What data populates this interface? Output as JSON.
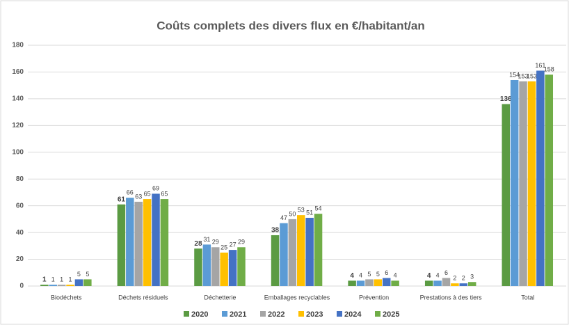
{
  "chart_data": {
    "type": "bar",
    "title": "Coûts complets des divers flux en €/habitant/an",
    "categories": [
      "Biodéchets",
      "Déchets résiduels",
      "Déchetterie",
      "Emballages recyclables",
      "Prévention",
      "Prestations à des tiers",
      "Total"
    ],
    "series": [
      {
        "name": "2020",
        "color": "#5b9b43",
        "values": [
          1,
          61,
          28,
          38,
          4,
          4,
          136
        ]
      },
      {
        "name": "2021",
        "color": "#5b9bd5",
        "values": [
          1,
          66,
          31,
          47,
          4,
          4,
          154
        ]
      },
      {
        "name": "2022",
        "color": "#a5a5a5",
        "values": [
          1,
          63,
          29,
          50,
          5,
          6,
          153
        ]
      },
      {
        "name": "2023",
        "color": "#ffc000",
        "values": [
          1,
          65,
          25,
          53,
          5,
          2,
          153
        ]
      },
      {
        "name": "2024",
        "color": "#4472c4",
        "values": [
          5,
          69,
          27,
          51,
          6,
          2,
          161
        ]
      },
      {
        "name": "2025",
        "color": "#70ad47",
        "values": [
          5,
          65,
          29,
          54,
          4,
          3,
          158
        ]
      }
    ],
    "ylim": [
      0,
      180
    ],
    "yticks": [
      0,
      20,
      40,
      60,
      80,
      100,
      120,
      140,
      160,
      180
    ],
    "grid": true,
    "legend": "bottom"
  }
}
